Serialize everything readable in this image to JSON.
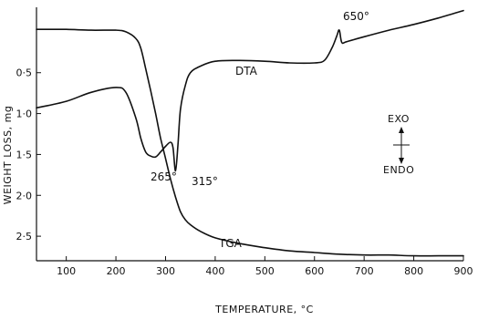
{
  "chart_data": {
    "type": "line",
    "xlabel": "TEMPERATURE, °C",
    "ylabel": "WEIGHT LOSS, mg",
    "xlim": [
      40,
      900
    ],
    "ylim": [
      -0.3,
      2.8
    ],
    "x_ticks": [
      100,
      200,
      300,
      400,
      500,
      600,
      700,
      800,
      900
    ],
    "y_ticks": [
      0.5,
      1.0,
      1.5,
      2.0,
      2.5
    ],
    "x_tick_labels": [
      "100",
      "200",
      "300",
      "400",
      "500",
      "600",
      "700",
      "800",
      "900"
    ],
    "y_tick_labels": [
      "0·5",
      "1·0",
      "1·5",
      "2·0",
      "2·5"
    ],
    "grid": false,
    "series": [
      {
        "name": "TGA",
        "x": [
          40,
          100,
          150,
          200,
          220,
          240,
          250,
          260,
          270,
          280,
          290,
          300,
          310,
          320,
          330,
          340,
          350,
          370,
          400,
          450,
          500,
          550,
          600,
          650,
          700,
          750,
          800,
          850,
          900
        ],
        "y": [
          -0.03,
          -0.03,
          -0.02,
          -0.02,
          0.0,
          0.08,
          0.2,
          0.45,
          0.72,
          1.0,
          1.3,
          1.55,
          1.8,
          2.02,
          2.2,
          2.3,
          2.36,
          2.44,
          2.52,
          2.59,
          2.64,
          2.68,
          2.7,
          2.72,
          2.73,
          2.73,
          2.74,
          2.74,
          2.74
        ]
      },
      {
        "name": "DTA",
        "x": [
          40,
          100,
          150,
          200,
          220,
          240,
          250,
          260,
          270,
          280,
          290,
          300,
          310,
          315,
          320,
          325,
          330,
          340,
          350,
          370,
          400,
          450,
          500,
          550,
          600,
          620,
          635,
          645,
          650,
          655,
          665,
          700,
          750,
          800,
          850,
          900
        ],
        "y": [
          0.93,
          0.85,
          0.74,
          0.68,
          0.74,
          1.05,
          1.3,
          1.47,
          1.52,
          1.53,
          1.47,
          1.4,
          1.35,
          1.42,
          1.7,
          1.38,
          0.95,
          0.65,
          0.5,
          0.42,
          0.36,
          0.35,
          0.36,
          0.38,
          0.38,
          0.35,
          0.2,
          0.05,
          -0.02,
          0.13,
          0.12,
          0.06,
          -0.02,
          -0.09,
          -0.17,
          -0.26
        ]
      }
    ],
    "annotations": {
      "peak_650": "650°",
      "peak_265": "265°",
      "peak_315": "315°",
      "label_dta": "DTA",
      "label_tga": "TGA"
    },
    "legend": {
      "exo": "EXO",
      "endo": "ENDO"
    }
  }
}
